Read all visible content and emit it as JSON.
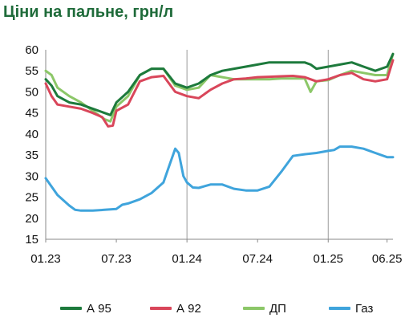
{
  "chart_data": {
    "type": "line",
    "title": "Ціни на пальне, грн/л",
    "xlabel": "",
    "ylabel": "",
    "ylim": [
      15,
      60
    ],
    "yticks": [
      "15",
      "20",
      "25",
      "30",
      "35",
      "40",
      "45",
      "50",
      "55",
      "60"
    ],
    "xlim": [
      0,
      29.5
    ],
    "xticks": [
      {
        "label": "01.23",
        "value": 0
      },
      {
        "label": "07.23",
        "value": 6
      },
      {
        "label": "01.24",
        "value": 12
      },
      {
        "label": "07.24",
        "value": 18
      },
      {
        "label": "01.25",
        "value": 24
      },
      {
        "label": "06.25",
        "value": 29
      }
    ],
    "x_unit": "months since 01.23",
    "grid": "vertical lines at 01.24 and 01.25",
    "legend_position": "bottom",
    "series": [
      {
        "name": "А 95",
        "color": "#1d7a3c",
        "points": [
          [
            0,
            53
          ],
          [
            0.5,
            51.5
          ],
          [
            1,
            49
          ],
          [
            2,
            47.5
          ],
          [
            3,
            47
          ],
          [
            4,
            46
          ],
          [
            5,
            45
          ],
          [
            5.5,
            44.5
          ],
          [
            6,
            47.5
          ],
          [
            7,
            50
          ],
          [
            8,
            54
          ],
          [
            9,
            55.5
          ],
          [
            10,
            55.5
          ],
          [
            11,
            52
          ],
          [
            12,
            51
          ],
          [
            13,
            52
          ],
          [
            14,
            54
          ],
          [
            15,
            55
          ],
          [
            16,
            55.5
          ],
          [
            17,
            56
          ],
          [
            18,
            56.5
          ],
          [
            19,
            57
          ],
          [
            20,
            57
          ],
          [
            21,
            57
          ],
          [
            22,
            57
          ],
          [
            22.5,
            56.5
          ],
          [
            23,
            55.5
          ],
          [
            24,
            56
          ],
          [
            25,
            56.5
          ],
          [
            26,
            57
          ],
          [
            27,
            56
          ],
          [
            28,
            55
          ],
          [
            29,
            56
          ],
          [
            29.5,
            59
          ]
        ]
      },
      {
        "name": "А 92",
        "color": "#d9465a",
        "points": [
          [
            0,
            52
          ],
          [
            0.5,
            49
          ],
          [
            1,
            47
          ],
          [
            2,
            46.5
          ],
          [
            3,
            46
          ],
          [
            4,
            45
          ],
          [
            4.8,
            44
          ],
          [
            5.3,
            41.8
          ],
          [
            5.7,
            42
          ],
          [
            6,
            45.5
          ],
          [
            7,
            47
          ],
          [
            8,
            52.5
          ],
          [
            9,
            53.5
          ],
          [
            10,
            53.8
          ],
          [
            11,
            50
          ],
          [
            12,
            49
          ],
          [
            13,
            48.5
          ],
          [
            14,
            50.5
          ],
          [
            15,
            52
          ],
          [
            16,
            53
          ],
          [
            17,
            53.2
          ],
          [
            18,
            53.5
          ],
          [
            19,
            53.6
          ],
          [
            20,
            53.7
          ],
          [
            21,
            53.8
          ],
          [
            22,
            53.5
          ],
          [
            23,
            52.5
          ],
          [
            24,
            53
          ],
          [
            25,
            54
          ],
          [
            26,
            54.5
          ],
          [
            27,
            53
          ],
          [
            28,
            52.5
          ],
          [
            29,
            53
          ],
          [
            29.5,
            57.5
          ]
        ]
      },
      {
        "name": "ДП",
        "color": "#8cc768",
        "points": [
          [
            0,
            55
          ],
          [
            0.5,
            54
          ],
          [
            1,
            51
          ],
          [
            2,
            49
          ],
          [
            3,
            47.5
          ],
          [
            4,
            45.5
          ],
          [
            5,
            43.5
          ],
          [
            5.5,
            43
          ],
          [
            6,
            46.5
          ],
          [
            7,
            49
          ],
          [
            8,
            54
          ],
          [
            9,
            55.5
          ],
          [
            10,
            55.5
          ],
          [
            11,
            51.5
          ],
          [
            12,
            50.5
          ],
          [
            13,
            51
          ],
          [
            14,
            54
          ],
          [
            15,
            53.5
          ],
          [
            16,
            53
          ],
          [
            17,
            53
          ],
          [
            18,
            53
          ],
          [
            19,
            53
          ],
          [
            20,
            53.2
          ],
          [
            21,
            53.2
          ],
          [
            22,
            53.2
          ],
          [
            22.5,
            50
          ],
          [
            23,
            52.5
          ],
          [
            24,
            52.8
          ],
          [
            25,
            54
          ],
          [
            26,
            55
          ],
          [
            27,
            54.5
          ],
          [
            28,
            54
          ],
          [
            29,
            54
          ],
          [
            29.5,
            59
          ]
        ]
      },
      {
        "name": "Газ",
        "color": "#3fa4dc",
        "points": [
          [
            0,
            29.5
          ],
          [
            0.5,
            27.5
          ],
          [
            1,
            25.5
          ],
          [
            2,
            23
          ],
          [
            2.5,
            22
          ],
          [
            3,
            21.8
          ],
          [
            4,
            21.8
          ],
          [
            5,
            22
          ],
          [
            6,
            22.2
          ],
          [
            6.5,
            23.2
          ],
          [
            7,
            23.5
          ],
          [
            8,
            24.5
          ],
          [
            9,
            26
          ],
          [
            10,
            28.5
          ],
          [
            10.5,
            32.5
          ],
          [
            11,
            36.5
          ],
          [
            11.3,
            35.5
          ],
          [
            11.7,
            30
          ],
          [
            12,
            28.5
          ],
          [
            12.5,
            27.3
          ],
          [
            13,
            27.2
          ],
          [
            14,
            28
          ],
          [
            15,
            28
          ],
          [
            16,
            27
          ],
          [
            17,
            26.6
          ],
          [
            18,
            26.6
          ],
          [
            19,
            27.5
          ],
          [
            20,
            31
          ],
          [
            21,
            34.8
          ],
          [
            22,
            35.2
          ],
          [
            23,
            35.5
          ],
          [
            24,
            36
          ],
          [
            24.5,
            36.2
          ],
          [
            25,
            37
          ],
          [
            26,
            37
          ],
          [
            27,
            36.5
          ],
          [
            28,
            35.5
          ],
          [
            29,
            34.5
          ],
          [
            29.5,
            34.5
          ]
        ]
      }
    ]
  }
}
